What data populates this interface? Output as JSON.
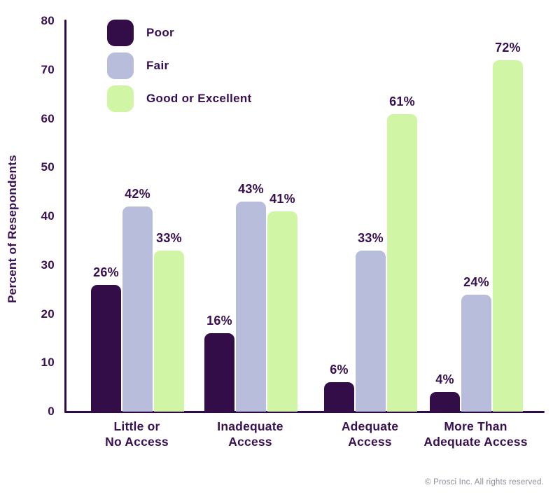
{
  "chart_data": {
    "type": "bar",
    "categories": [
      "Little or\nNo Access",
      "Inadequate\nAccess",
      "Adequate\nAccess",
      "More Than\nAdequate Access"
    ],
    "series": [
      {
        "name": "Poor",
        "color": "#330d47",
        "values": [
          26,
          16,
          6,
          4
        ]
      },
      {
        "name": "Fair",
        "color": "#b9bddc",
        "values": [
          42,
          43,
          33,
          24
        ]
      },
      {
        "name": "Good or Excellent",
        "color": "#d0f5a4",
        "values": [
          33,
          41,
          61,
          72
        ]
      }
    ],
    "value_suffix": "%",
    "title": "",
    "xlabel": "",
    "ylabel": "Percent of Resepondents",
    "ylim": [
      0,
      80
    ],
    "yticks": [
      0,
      10,
      20,
      30,
      40,
      50,
      60,
      70,
      80
    ],
    "grid": false,
    "legend_position": "top-left"
  },
  "colors": {
    "text": "#381052",
    "axis": "#2f0c45",
    "footer_text": "#8d8d98",
    "background": "#ffffff"
  },
  "footer": {
    "copyright": "© Prosci Inc. All rights reserved."
  }
}
